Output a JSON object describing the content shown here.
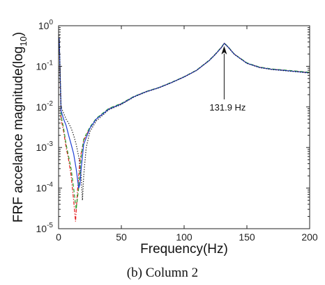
{
  "chart_data": {
    "type": "line",
    "title": "",
    "xlabel": "Frequency(Hz)",
    "ylabel_base": "FRF accelance magnitude(log",
    "ylabel_sub": "10",
    "ylabel_end": ")",
    "xlim": [
      0,
      200
    ],
    "ylim": [
      1e-05,
      1
    ],
    "yscale": "log",
    "grid": false,
    "legend": "none",
    "x_ticks": [
      {
        "value": 0,
        "label": "0"
      },
      {
        "value": 50,
        "label": "50"
      },
      {
        "value": 100,
        "label": "100"
      },
      {
        "value": 150,
        "label": "150"
      },
      {
        "value": 200,
        "label": "200"
      }
    ],
    "y_ticks": [
      {
        "exp": 0,
        "base": "10",
        "sup": "0"
      },
      {
        "exp": -1,
        "base": "10",
        "sup": "-1"
      },
      {
        "exp": -2,
        "base": "10",
        "sup": "-2"
      },
      {
        "exp": -3,
        "base": "10",
        "sup": "-3"
      },
      {
        "exp": -4,
        "base": "10",
        "sup": "-4"
      },
      {
        "exp": -5,
        "base": "10",
        "sup": "-5"
      }
    ],
    "annotation": {
      "text": "131.9 Hz",
      "x": 131.9,
      "y": 0.37
    },
    "series": [
      {
        "color": "#e41a1c",
        "style": "dashdot",
        "x": [
          0.5,
          2,
          4,
          6,
          8,
          10,
          12,
          13.5,
          15,
          17,
          20,
          25,
          30,
          40,
          50,
          60,
          70,
          80,
          90,
          100,
          110,
          120,
          125,
          130,
          132,
          135,
          140,
          150,
          160,
          170,
          180,
          190,
          200
        ],
        "y": [
          0.4,
          0.005,
          0.0025,
          0.001,
          0.0005,
          0.0002,
          5e-05,
          1.5e-05,
          8e-05,
          0.0005,
          0.0015,
          0.003,
          0.005,
          0.009,
          0.012,
          0.018,
          0.024,
          0.03,
          0.04,
          0.055,
          0.08,
          0.14,
          0.2,
          0.3,
          0.37,
          0.3,
          0.2,
          0.12,
          0.095,
          0.085,
          0.08,
          0.075,
          0.07
        ]
      },
      {
        "color": "#2ca02c",
        "style": "dashed",
        "x": [
          0.5,
          2,
          4,
          6,
          8,
          10,
          12,
          14,
          16,
          18,
          20,
          25,
          30,
          40,
          50,
          60,
          70,
          80,
          90,
          100,
          110,
          120,
          125,
          130,
          132,
          135,
          140,
          150,
          160,
          170,
          180,
          190,
          200
        ],
        "y": [
          0.45,
          0.006,
          0.003,
          0.0012,
          0.0006,
          0.0003,
          0.0001,
          3e-05,
          0.0001,
          0.0006,
          0.0016,
          0.0032,
          0.0052,
          0.0092,
          0.0122,
          0.0182,
          0.0242,
          0.0302,
          0.0405,
          0.0555,
          0.081,
          0.142,
          0.203,
          0.305,
          0.375,
          0.305,
          0.2,
          0.122,
          0.096,
          0.086,
          0.081,
          0.076,
          0.071
        ]
      },
      {
        "color": "#1f3fd6",
        "style": "solid",
        "x": [
          0.5,
          2,
          4,
          6,
          8,
          10,
          12,
          14,
          16,
          17,
          18,
          20,
          25,
          30,
          40,
          50,
          60,
          70,
          80,
          90,
          100,
          110,
          120,
          125,
          130,
          132,
          135,
          140,
          150,
          160,
          170,
          180,
          190,
          200
        ],
        "y": [
          0.5,
          0.008,
          0.005,
          0.0035,
          0.002,
          0.0012,
          0.0007,
          0.0003,
          0.0001,
          0.00012,
          0.0003,
          0.0012,
          0.003,
          0.005,
          0.0088,
          0.0118,
          0.0178,
          0.0238,
          0.0298,
          0.0398,
          0.0548,
          0.0798,
          0.139,
          0.199,
          0.298,
          0.368,
          0.298,
          0.198,
          0.119,
          0.094,
          0.084,
          0.079,
          0.074,
          0.069
        ]
      },
      {
        "color": "#222222",
        "style": "dotted",
        "x": [
          0.5,
          2,
          4,
          6,
          8,
          10,
          12,
          14,
          16,
          18,
          19,
          20,
          22,
          25,
          30,
          40,
          50,
          60,
          70,
          80,
          90,
          100,
          110,
          120,
          125,
          130,
          132,
          135,
          140,
          150,
          160,
          170,
          180,
          190,
          200
        ],
        "y": [
          0.6,
          0.01,
          0.007,
          0.005,
          0.004,
          0.003,
          0.002,
          0.0012,
          0.0006,
          0.0002,
          5e-05,
          0.0002,
          0.001,
          0.0025,
          0.0045,
          0.0085,
          0.0115,
          0.0175,
          0.0235,
          0.0295,
          0.0395,
          0.0545,
          0.0795,
          0.138,
          0.198,
          0.297,
          0.366,
          0.297,
          0.197,
          0.118,
          0.093,
          0.083,
          0.078,
          0.073,
          0.068
        ]
      }
    ]
  },
  "caption": "(b) Column 2"
}
